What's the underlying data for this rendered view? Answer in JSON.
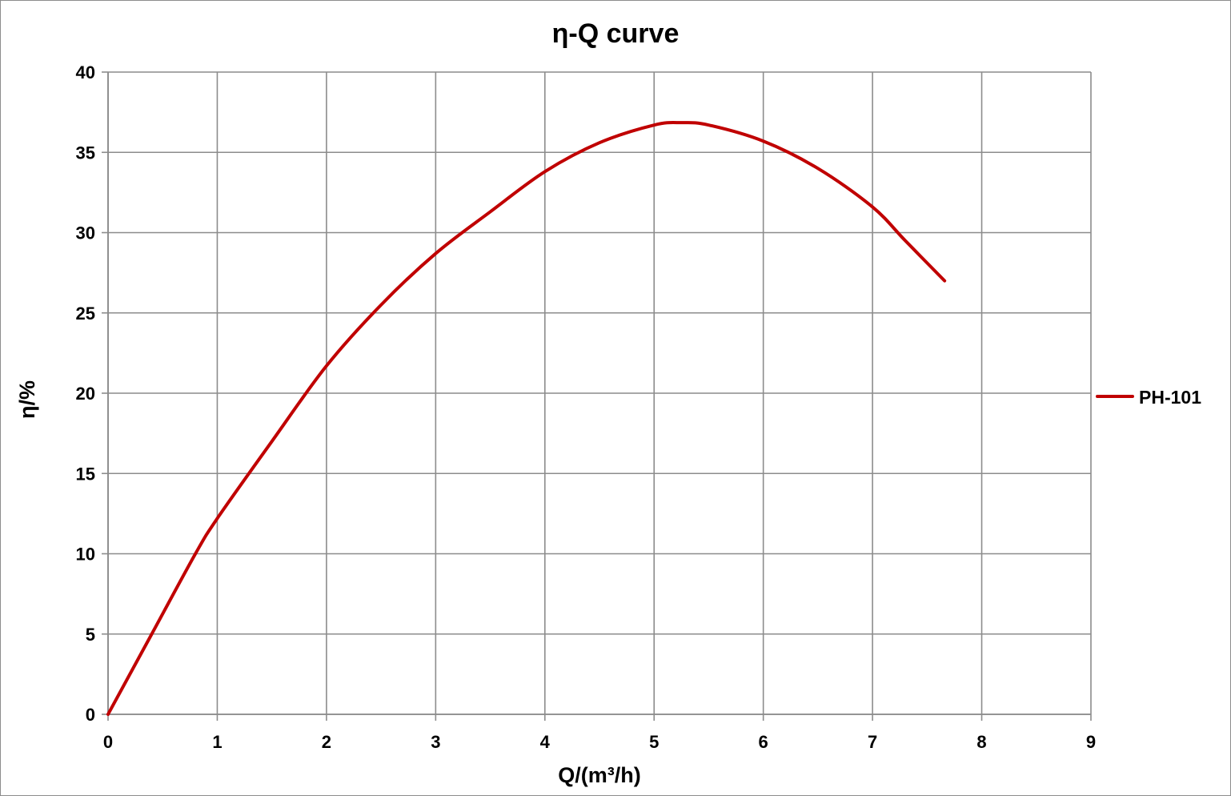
{
  "chart_data": {
    "type": "line",
    "title": "η-Q  curve",
    "xlabel": "Q/(m³/h)",
    "ylabel": "η/%",
    "xlim": [
      0,
      9
    ],
    "ylim": [
      0,
      40
    ],
    "x_ticks": [
      "0",
      "1",
      "2",
      "3",
      "4",
      "5",
      "6",
      "7",
      "8",
      "9"
    ],
    "y_ticks": [
      "0",
      "5",
      "10",
      "15",
      "20",
      "25",
      "30",
      "35",
      "40"
    ],
    "grid": true,
    "legend_position": "right",
    "series": [
      {
        "name": "PH-101",
        "color": "#c00000",
        "x": [
          0,
          0.4,
          0.8,
          1.0,
          1.5,
          2.0,
          2.5,
          3.0,
          3.5,
          4.0,
          4.5,
          5.0,
          5.25,
          5.5,
          6.0,
          6.5,
          7.0,
          7.3,
          7.66
        ],
        "y": [
          0,
          5,
          10,
          12.2,
          17.0,
          21.7,
          25.5,
          28.7,
          31.3,
          33.8,
          35.6,
          36.7,
          36.85,
          36.7,
          35.7,
          34.0,
          31.6,
          29.5,
          27.0
        ]
      }
    ]
  }
}
